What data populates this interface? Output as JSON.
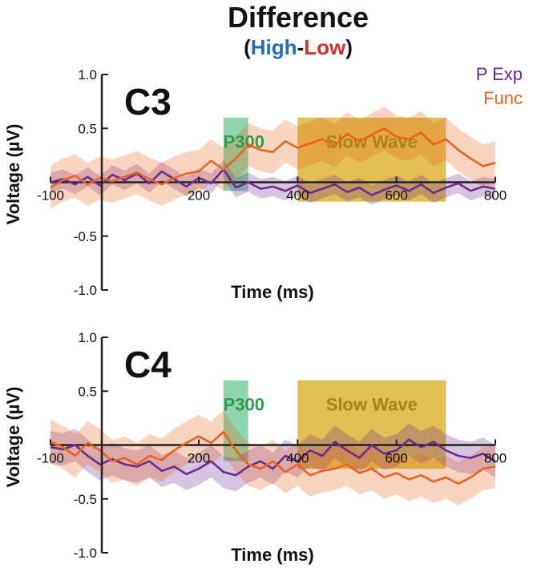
{
  "chart_data": {
    "type": "line",
    "title": "Difference",
    "subtitle": {
      "open": "(",
      "high": "High",
      "dash": "-",
      "low": "Low",
      "close": ")"
    },
    "xlabel": "Time (ms)",
    "ylabel": "Voltage (µV)",
    "xlim": [
      -100,
      800
    ],
    "ylim": [
      -1.0,
      1.0
    ],
    "xticks": [
      -100,
      200,
      400,
      600,
      800
    ],
    "xtick_labels": [
      "-100",
      "200",
      "400",
      "600",
      "800"
    ],
    "yticks": [
      1.0,
      0.5,
      -0.5,
      -1.0
    ],
    "ytick_labels": [
      "1.0",
      "0.5",
      "-0.5",
      "-1.0"
    ],
    "legend": {
      "placement": "top-right",
      "entries": [
        {
          "name": "P Exp",
          "color": "#6a2c91"
        },
        {
          "name": "Func",
          "color": "#e8641e"
        }
      ]
    },
    "colors": {
      "high": "#1f6fb4",
      "low": "#d0312d",
      "p_exp": "#6a2c91",
      "func": "#e8641e",
      "p300_region": "#5cc48a",
      "p300_text": "#2f9b4b",
      "slow_wave_region": "#d7a91a",
      "slow_wave_text": "#a8841e"
    },
    "regions": [
      {
        "label": "P300",
        "x": [
          250,
          300
        ],
        "y": [
          -0.08,
          0.6
        ]
      },
      {
        "label": "Slow Wave",
        "x": [
          400,
          700
        ],
        "y": [
          -0.18,
          0.6
        ]
      }
    ],
    "panels": [
      {
        "label": "C3",
        "regions": [
          {
            "label": "P300",
            "x": [
              250,
              300
            ],
            "y": [
              -0.08,
              0.6
            ]
          },
          {
            "label": "Slow Wave",
            "x": [
              400,
              700
            ],
            "y": [
              -0.18,
              0.6
            ]
          }
        ],
        "series": [
          {
            "name": "P Exp",
            "x": [
              -100,
              -75,
              -50,
              -25,
              0,
              25,
              50,
              75,
              100,
              125,
              150,
              175,
              200,
              225,
              250,
              275,
              300,
              325,
              350,
              375,
              400,
              425,
              450,
              475,
              500,
              525,
              550,
              575,
              600,
              625,
              650,
              675,
              700,
              725,
              750,
              775,
              800
            ],
            "y": [
              0.0,
              0.03,
              -0.02,
              0.05,
              -0.03,
              0.07,
              0.02,
              0.08,
              -0.01,
              0.1,
              0.03,
              -0.04,
              0.04,
              -0.01,
              0.12,
              -0.05,
              0.0,
              -0.06,
              -0.04,
              -0.08,
              -0.03,
              -0.1,
              -0.06,
              -0.02,
              -0.09,
              -0.05,
              -0.12,
              -0.07,
              -0.03,
              -0.08,
              -0.02,
              -0.1,
              -0.05,
              -0.01,
              -0.08,
              -0.04,
              -0.06
            ],
            "err": 0.09
          },
          {
            "name": "Func",
            "x": [
              -100,
              -75,
              -50,
              -25,
              0,
              25,
              50,
              75,
              100,
              125,
              150,
              175,
              200,
              225,
              250,
              275,
              300,
              325,
              350,
              375,
              400,
              425,
              450,
              475,
              500,
              525,
              550,
              575,
              600,
              625,
              650,
              675,
              700,
              725,
              750,
              775,
              800
            ],
            "y": [
              -0.05,
              0.02,
              0.06,
              -0.02,
              0.04,
              0.01,
              0.05,
              0.09,
              0.03,
              -0.02,
              0.04,
              0.08,
              0.1,
              0.2,
              0.12,
              0.22,
              0.35,
              0.3,
              0.28,
              0.38,
              0.32,
              0.36,
              0.4,
              0.34,
              0.45,
              0.38,
              0.44,
              0.5,
              0.42,
              0.4,
              0.46,
              0.35,
              0.4,
              0.3,
              0.22,
              0.15,
              0.18
            ],
            "err": 0.2
          }
        ]
      },
      {
        "label": "C4",
        "regions": [
          {
            "label": "P300",
            "x": [
              250,
              300
            ],
            "y": [
              -0.15,
              0.6
            ]
          },
          {
            "label": "Slow Wave",
            "x": [
              400,
              700
            ],
            "y": [
              -0.22,
              0.6
            ]
          }
        ],
        "series": [
          {
            "name": "P Exp",
            "x": [
              -100,
              -75,
              -50,
              -25,
              0,
              25,
              50,
              75,
              100,
              125,
              150,
              175,
              200,
              225,
              250,
              275,
              300,
              325,
              350,
              375,
              400,
              425,
              450,
              475,
              500,
              525,
              550,
              575,
              600,
              625,
              650,
              675,
              700,
              725,
              750,
              775,
              800
            ],
            "y": [
              -0.02,
              -0.04,
              0.0,
              -0.1,
              -0.18,
              -0.13,
              -0.18,
              -0.2,
              -0.15,
              -0.24,
              -0.2,
              -0.27,
              -0.22,
              -0.15,
              -0.25,
              -0.28,
              -0.2,
              -0.15,
              -0.22,
              -0.1,
              -0.15,
              -0.05,
              -0.1,
              0.03,
              -0.05,
              -0.12,
              0.0,
              -0.08,
              -0.05,
              0.05,
              -0.02,
              0.03,
              -0.05,
              -0.1,
              -0.12,
              -0.08,
              -0.15
            ],
            "err": 0.15
          },
          {
            "name": "Func",
            "x": [
              -100,
              -75,
              -50,
              -25,
              0,
              25,
              50,
              75,
              100,
              125,
              150,
              175,
              200,
              225,
              250,
              275,
              300,
              325,
              350,
              375,
              400,
              425,
              450,
              475,
              500,
              525,
              550,
              575,
              600,
              625,
              650,
              675,
              700,
              725,
              750,
              775,
              800
            ],
            "y": [
              0.03,
              -0.02,
              -0.1,
              0.02,
              -0.05,
              -0.15,
              -0.12,
              -0.18,
              -0.1,
              -0.14,
              -0.05,
              0.02,
              0.08,
              0.02,
              0.12,
              -0.05,
              -0.18,
              -0.22,
              -0.15,
              -0.25,
              -0.18,
              -0.28,
              -0.24,
              -0.22,
              -0.18,
              -0.26,
              -0.22,
              -0.3,
              -0.26,
              -0.32,
              -0.28,
              -0.34,
              -0.3,
              -0.36,
              -0.3,
              -0.22,
              -0.2
            ],
            "err": 0.2
          }
        ]
      }
    ]
  }
}
